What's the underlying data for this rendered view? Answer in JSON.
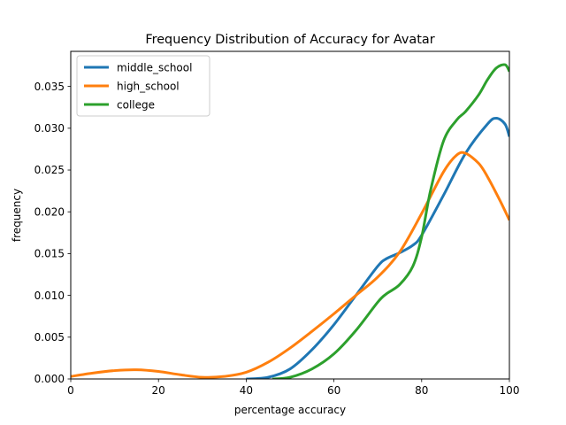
{
  "chart_data": {
    "type": "line",
    "title": "Frequency Distribution of Accuracy for Avatar",
    "xlabel": "percentage accuracy",
    "ylabel": "frequency",
    "xlim": [
      0,
      100
    ],
    "ylim": [
      0,
      0.0392
    ],
    "x_ticks": [
      0,
      20,
      40,
      60,
      80,
      100
    ],
    "x_tick_labels": [
      "0",
      "20",
      "40",
      "60",
      "80",
      "100"
    ],
    "y_ticks": [
      0,
      0.005,
      0.01,
      0.015,
      0.02,
      0.025,
      0.03,
      0.035
    ],
    "y_tick_labels": [
      "0.000",
      "0.005",
      "0.010",
      "0.015",
      "0.020",
      "0.025",
      "0.030",
      "0.035"
    ],
    "grid": false,
    "legend_position": "top-left",
    "series": [
      {
        "name": "middle_school",
        "color": "#1f77b4",
        "x": [
          40,
          45,
          50,
          55,
          60,
          65,
          70,
          72,
          75,
          78,
          80,
          85,
          90,
          95,
          97,
          99,
          100
        ],
        "y": [
          0,
          0.0002,
          0.0012,
          0.0035,
          0.0065,
          0.01,
          0.0135,
          0.0144,
          0.0151,
          0.016,
          0.0172,
          0.022,
          0.027,
          0.0305,
          0.0312,
          0.0305,
          0.029
        ]
      },
      {
        "name": "high_school",
        "color": "#ff7f0e",
        "x": [
          0,
          5,
          10,
          15,
          20,
          25,
          30,
          35,
          40,
          45,
          50,
          55,
          60,
          65,
          70,
          75,
          80,
          85,
          88,
          90,
          93,
          95,
          98,
          100
        ],
        "y": [
          0.0003,
          0.0007,
          0.001,
          0.0011,
          0.0009,
          0.0005,
          0.0002,
          0.0003,
          0.0008,
          0.002,
          0.0037,
          0.0057,
          0.0078,
          0.01,
          0.0122,
          0.0152,
          0.0198,
          0.0248,
          0.0268,
          0.027,
          0.0258,
          0.0242,
          0.0212,
          0.019
        ]
      },
      {
        "name": "college",
        "color": "#2ca02c",
        "x": [
          46,
          50,
          55,
          60,
          65,
          70,
          72,
          75,
          78,
          80,
          82,
          85,
          88,
          90,
          93,
          95,
          97,
          99,
          100
        ],
        "y": [
          0,
          0.0002,
          0.0012,
          0.003,
          0.0058,
          0.0092,
          0.0102,
          0.0113,
          0.0135,
          0.017,
          0.0225,
          0.0285,
          0.031,
          0.032,
          0.034,
          0.0358,
          0.0372,
          0.0376,
          0.0368
        ]
      }
    ]
  }
}
